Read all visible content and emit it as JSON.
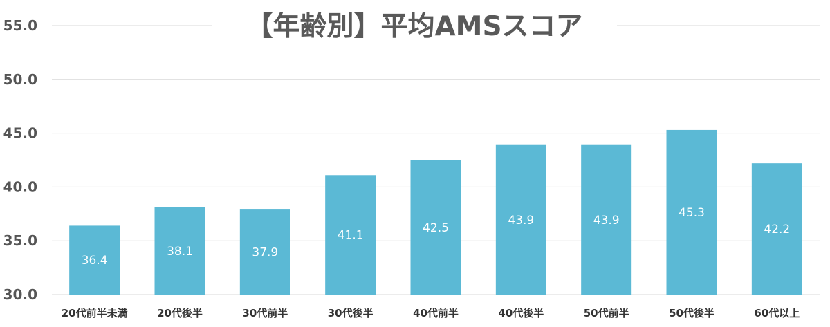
{
  "chart_data": {
    "type": "bar",
    "title": "【年齢別】平均AMSスコア",
    "categories": [
      "20代前半未満",
      "20代後半",
      "30代前半",
      "30代後半",
      "40代前半",
      "40代後半",
      "50代前半",
      "50代後半",
      "60代以上"
    ],
    "values": [
      36.4,
      38.1,
      37.9,
      41.1,
      42.5,
      43.9,
      43.9,
      45.3,
      42.2
    ],
    "value_labels": [
      "36.4",
      "38.1",
      "37.9",
      "41.1",
      "42.5",
      "43.9",
      "43.9",
      "45.3",
      "42.2"
    ],
    "y_ticks": [
      "30.0",
      "35.0",
      "40.0",
      "45.0",
      "50.0",
      "55.0"
    ],
    "ylim": [
      30,
      55
    ],
    "xlabel": "",
    "ylabel": "",
    "grid": true,
    "legend": "none",
    "bar_color": "#5bb9d5"
  }
}
